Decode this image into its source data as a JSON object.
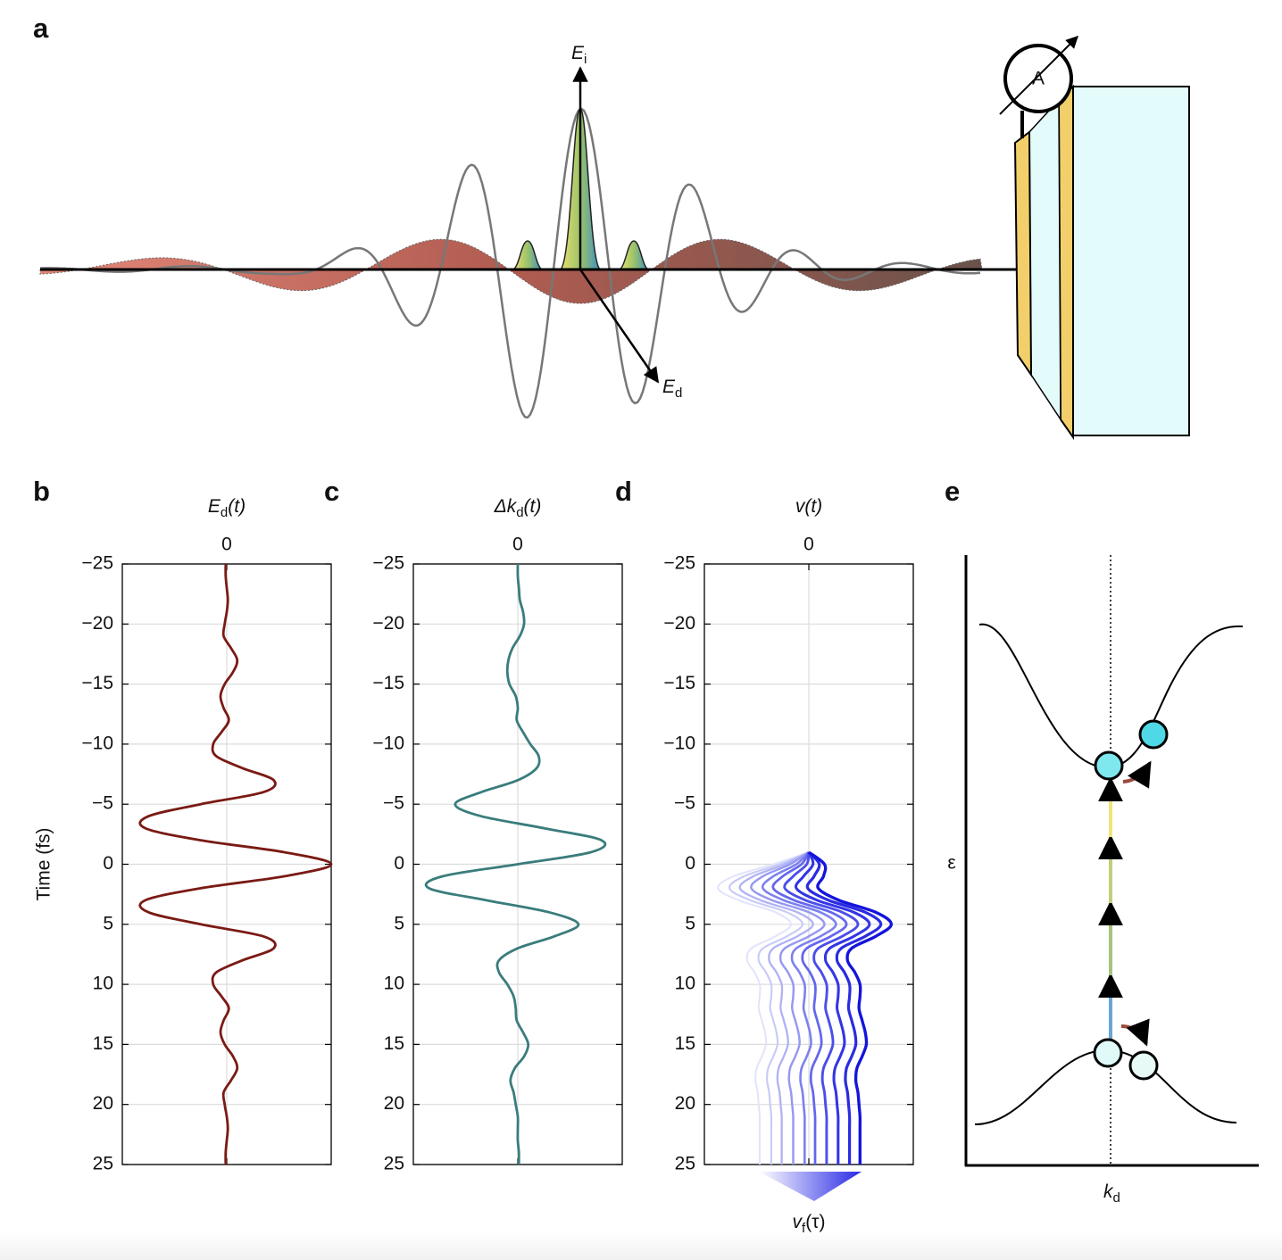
{
  "panel_a": {
    "label": "a",
    "incident_field": {
      "base": "E",
      "sub": "i"
    },
    "detected_field": {
      "base": "E",
      "sub": "d"
    },
    "ammeter": "A"
  },
  "chart_data": [
    {
      "type": "line",
      "label": "b",
      "title": {
        "base": "E",
        "sub": "d",
        "tail": "(t)"
      },
      "ylabel": "Time (fs)",
      "orientation": "vertical",
      "x": [
        -25,
        -24,
        -23,
        -22,
        -21,
        -20,
        -19,
        -18,
        -17,
        -16,
        -15,
        -14,
        -13,
        -12,
        -11,
        -10,
        -9,
        -8,
        -7,
        -6,
        -5,
        -4,
        -3,
        -2,
        -1,
        0,
        1,
        2,
        3,
        4,
        5,
        6,
        7,
        8,
        9,
        10,
        11,
        12,
        13,
        14,
        15,
        16,
        17,
        18,
        19,
        20,
        21,
        22,
        23,
        24,
        25
      ],
      "values": [
        -0.01,
        -0.01,
        0.0,
        0.01,
        0.0,
        -0.02,
        -0.03,
        0.04,
        0.1,
        0.06,
        -0.02,
        -0.06,
        -0.03,
        0.02,
        -0.05,
        -0.13,
        -0.1,
        0.15,
        0.45,
        0.35,
        -0.25,
        -0.75,
        -0.78,
        -0.25,
        0.55,
        1.0,
        0.55,
        -0.25,
        -0.78,
        -0.75,
        -0.25,
        0.35,
        0.45,
        0.15,
        -0.1,
        -0.13,
        -0.05,
        0.02,
        -0.03,
        -0.06,
        -0.02,
        0.06,
        0.1,
        0.04,
        -0.03,
        -0.02,
        0.0,
        0.01,
        0.0,
        -0.01,
        -0.01
      ],
      "color": "#7a1a14",
      "xlim": [
        -25,
        25
      ],
      "xticks": [
        {
          "value": -25,
          "label": "−25"
        },
        {
          "value": -20,
          "label": "−20"
        },
        {
          "value": -15,
          "label": "−15"
        },
        {
          "value": -10,
          "label": "−10"
        },
        {
          "value": -5,
          "label": "−5"
        },
        0,
        5,
        10,
        15,
        20,
        25
      ],
      "ylim": [
        -1,
        1
      ],
      "yticks": [
        0
      ],
      "grid": true
    },
    {
      "type": "line",
      "label": "c",
      "title": {
        "base": "Δk",
        "sub": "d",
        "tail": "(t)"
      },
      "orientation": "vertical",
      "x": [
        -25,
        -24,
        -23,
        -22,
        -21,
        -20,
        -19,
        -18,
        -17,
        -16,
        -15,
        -14,
        -13,
        -12,
        -11,
        -10,
        -9,
        -8,
        -7,
        -6,
        -5,
        -4,
        -3,
        -2,
        -1,
        0,
        1,
        2,
        3,
        4,
        5,
        6,
        7,
        8,
        9,
        10,
        11,
        12,
        13,
        14,
        15,
        16,
        17,
        18,
        19,
        20,
        21,
        22,
        23,
        24,
        25
      ],
      "values": [
        0.0,
        0.0,
        0.01,
        0.02,
        0.05,
        0.06,
        0.02,
        -0.05,
        -0.09,
        -0.1,
        -0.08,
        -0.02,
        0.0,
        -0.01,
        0.05,
        0.12,
        0.2,
        0.18,
        0.0,
        -0.35,
        -0.6,
        -0.35,
        0.25,
        0.8,
        0.7,
        0.0,
        -0.72,
        -0.85,
        -0.3,
        0.3,
        0.58,
        0.35,
        0.0,
        -0.18,
        -0.18,
        -0.1,
        -0.04,
        -0.02,
        -0.01,
        0.05,
        0.1,
        0.06,
        -0.03,
        -0.07,
        -0.04,
        -0.02,
        0.0,
        0.0,
        0.0,
        0.01,
        0.01
      ],
      "color": "#3a7c7c",
      "xlim": [
        -25,
        25
      ],
      "xticks": [
        {
          "value": -25,
          "label": "−25"
        },
        {
          "value": -20,
          "label": "−20"
        },
        {
          "value": -15,
          "label": "−15"
        },
        {
          "value": -10,
          "label": "−10"
        },
        {
          "value": -5,
          "label": "−5"
        },
        0,
        5,
        10,
        15,
        20,
        25
      ],
      "ylim": [
        -1,
        1
      ],
      "yticks": [
        0
      ],
      "grid": true
    },
    {
      "type": "multiline",
      "label": "d",
      "title": {
        "base": "v",
        "tail": "(t)"
      },
      "orientation": "vertical",
      "x": [
        -1,
        0,
        1,
        2,
        3,
        4,
        5,
        6,
        7,
        8,
        9,
        10,
        11,
        12,
        13,
        14,
        15,
        16,
        17,
        18,
        19,
        20,
        21,
        22,
        23,
        24,
        25
      ],
      "series": [
        {
          "color": "#e1e4fa",
          "values": [
            0,
            -0.34,
            -0.72,
            -0.87,
            -0.67,
            -0.32,
            -0.17,
            -0.32,
            -0.55,
            -0.59,
            -0.52,
            -0.47,
            -0.47,
            -0.48,
            -0.45,
            -0.42,
            -0.41,
            -0.45,
            -0.5,
            -0.51,
            -0.49,
            -0.48,
            -0.47,
            -0.47,
            -0.47,
            -0.47,
            -0.47
          ]
        },
        {
          "color": "#c8cbf7",
          "values": [
            0,
            -0.28,
            -0.62,
            -0.76,
            -0.56,
            -0.21,
            -0.06,
            -0.21,
            -0.44,
            -0.48,
            -0.41,
            -0.36,
            -0.36,
            -0.37,
            -0.34,
            -0.31,
            -0.3,
            -0.34,
            -0.39,
            -0.4,
            -0.38,
            -0.37,
            -0.36,
            -0.36,
            -0.36,
            -0.36,
            -0.36
          ]
        },
        {
          "color": "#afb2f4",
          "values": [
            0,
            -0.23,
            -0.53,
            -0.66,
            -0.46,
            -0.11,
            0.04,
            -0.11,
            -0.34,
            -0.38,
            -0.31,
            -0.26,
            -0.26,
            -0.27,
            -0.24,
            -0.21,
            -0.2,
            -0.24,
            -0.29,
            -0.3,
            -0.28,
            -0.27,
            -0.26,
            -0.26,
            -0.26,
            -0.26,
            -0.26
          ]
        },
        {
          "color": "#9699f1",
          "values": [
            0,
            -0.18,
            -0.44,
            -0.55,
            -0.35,
            0.0,
            0.15,
            0.0,
            -0.23,
            -0.27,
            -0.2,
            -0.15,
            -0.15,
            -0.16,
            -0.13,
            -0.1,
            -0.09,
            -0.13,
            -0.18,
            -0.19,
            -0.17,
            -0.16,
            -0.15,
            -0.15,
            -0.15,
            -0.15,
            -0.15
          ]
        },
        {
          "color": "#7d80ee",
          "values": [
            0,
            -0.12,
            -0.34,
            -0.44,
            -0.24,
            0.11,
            0.26,
            0.11,
            -0.12,
            -0.16,
            -0.09,
            -0.04,
            -0.04,
            -0.05,
            -0.02,
            0.01,
            0.02,
            -0.02,
            -0.07,
            -0.08,
            -0.06,
            -0.05,
            -0.04,
            -0.04,
            -0.04,
            -0.04,
            -0.04
          ]
        },
        {
          "color": "#6467eb",
          "values": [
            0,
            -0.07,
            -0.25,
            -0.34,
            -0.14,
            0.21,
            0.36,
            0.21,
            -0.02,
            -0.06,
            0.01,
            0.06,
            0.06,
            0.05,
            0.08,
            0.11,
            0.12,
            0.08,
            0.03,
            0.02,
            0.04,
            0.05,
            0.06,
            0.06,
            0.06,
            0.06,
            0.06
          ]
        },
        {
          "color": "#4b4ee8",
          "values": [
            0,
            -0.02,
            -0.15,
            -0.23,
            -0.03,
            0.32,
            0.47,
            0.32,
            0.09,
            0.05,
            0.12,
            0.17,
            0.17,
            0.16,
            0.19,
            0.22,
            0.23,
            0.19,
            0.14,
            0.13,
            0.15,
            0.16,
            0.17,
            0.17,
            0.17,
            0.17,
            0.17
          ]
        },
        {
          "color": "#3235e5",
          "values": [
            0,
            0.04,
            -0.05,
            -0.12,
            0.08,
            0.43,
            0.58,
            0.43,
            0.2,
            0.16,
            0.23,
            0.28,
            0.28,
            0.27,
            0.3,
            0.33,
            0.34,
            0.3,
            0.25,
            0.24,
            0.26,
            0.27,
            0.28,
            0.28,
            0.28,
            0.28,
            0.28
          ]
        },
        {
          "color": "#2a2ce0",
          "values": [
            0,
            0.1,
            0.05,
            -0.01,
            0.19,
            0.54,
            0.69,
            0.54,
            0.31,
            0.27,
            0.34,
            0.39,
            0.39,
            0.38,
            0.41,
            0.44,
            0.45,
            0.41,
            0.36,
            0.35,
            0.37,
            0.38,
            0.39,
            0.39,
            0.39,
            0.39,
            0.39
          ]
        },
        {
          "color": "#1414dc",
          "values": [
            0,
            0.15,
            0.14,
            0.09,
            0.29,
            0.64,
            0.79,
            0.64,
            0.41,
            0.37,
            0.44,
            0.49,
            0.49,
            0.48,
            0.51,
            0.54,
            0.55,
            0.51,
            0.46,
            0.45,
            0.47,
            0.48,
            0.49,
            0.49,
            0.49,
            0.49,
            0.49
          ]
        }
      ],
      "xlim": [
        -25,
        25
      ],
      "xticks": [
        {
          "value": -25,
          "label": "−25"
        },
        {
          "value": -20,
          "label": "−20"
        },
        {
          "value": -15,
          "label": "−15"
        },
        {
          "value": -10,
          "label": "−10"
        },
        {
          "value": -5,
          "label": "−5"
        },
        0,
        5,
        10,
        15,
        20,
        25
      ],
      "ylim": [
        -1,
        1
      ],
      "yticks": [
        0
      ],
      "grid": true
    }
  ],
  "final_velocity_label": {
    "base": "v",
    "sub": "f",
    "tail": "(τ)"
  },
  "panel_e": {
    "label": "e",
    "y_label": "ε",
    "x_label": {
      "base": "k",
      "sub": "d"
    }
  }
}
